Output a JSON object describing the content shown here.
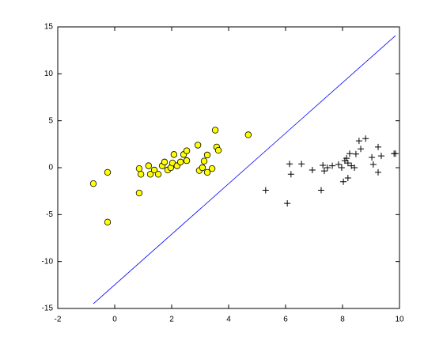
{
  "chart_data": {
    "type": "scatter",
    "xlim": [
      -2,
      10
    ],
    "ylim": [
      -15,
      15
    ],
    "xticks": [
      -2,
      0,
      2,
      4,
      6,
      8,
      10
    ],
    "yticks": [
      -15,
      -10,
      -5,
      0,
      5,
      10,
      15
    ],
    "series": [
      {
        "marker": "line",
        "color": "#0000ff",
        "x": [
          -0.75,
          9.86
        ],
        "y": [
          -14.5,
          14.07
        ]
      },
      {
        "marker": "circle",
        "color": "#ffff00",
        "x": [
          -0.75,
          -0.25,
          -0.25,
          0.86,
          0.86,
          0.92,
          1.19,
          1.25,
          1.39,
          1.53,
          1.67,
          1.75,
          1.86,
          1.97,
          2.03,
          2.08,
          2.19,
          2.31,
          2.42,
          2.53,
          2.53,
          2.92,
          2.97,
          3.08,
          3.14,
          3.25,
          3.25,
          3.42,
          3.53,
          3.58,
          3.64,
          4.69
        ],
        "y": [
          -1.7,
          -0.5,
          -5.8,
          -2.7,
          -0.1,
          -0.7,
          0.2,
          -0.7,
          -0.25,
          -0.7,
          0.2,
          0.6,
          -0.25,
          0,
          0.5,
          1.4,
          0.2,
          0.6,
          1.4,
          1.8,
          0.75,
          2.4,
          -0.3,
          0,
          0.7,
          1.35,
          -0.5,
          -0.1,
          4.0,
          2.2,
          1.85,
          3.5
        ]
      },
      {
        "marker": "plus",
        "color": "#000000",
        "x": [
          5.3,
          6.06,
          6.14,
          6.19,
          6.56,
          6.94,
          7.25,
          7.31,
          7.36,
          7.47,
          7.64,
          7.86,
          7.97,
          8.08,
          8.14,
          8.19,
          8.25,
          8.31,
          8.42,
          8.47,
          8.58,
          8.64,
          8.81,
          9.03,
          9.08,
          9.25,
          9.25,
          9.36,
          9.81,
          9.86,
          8.19,
          8.03
        ],
        "y": [
          -2.4,
          -3.8,
          0.4,
          -0.7,
          0.4,
          -0.25,
          -2.4,
          0.25,
          -0.35,
          0,
          0.2,
          0.35,
          0,
          0.75,
          1.0,
          0.5,
          1.5,
          0.2,
          0,
          1.45,
          2.85,
          2.0,
          3.1,
          1.1,
          0.35,
          2.2,
          -0.5,
          1.25,
          1.5,
          1.5,
          -1.1,
          -1.5
        ]
      }
    ]
  }
}
